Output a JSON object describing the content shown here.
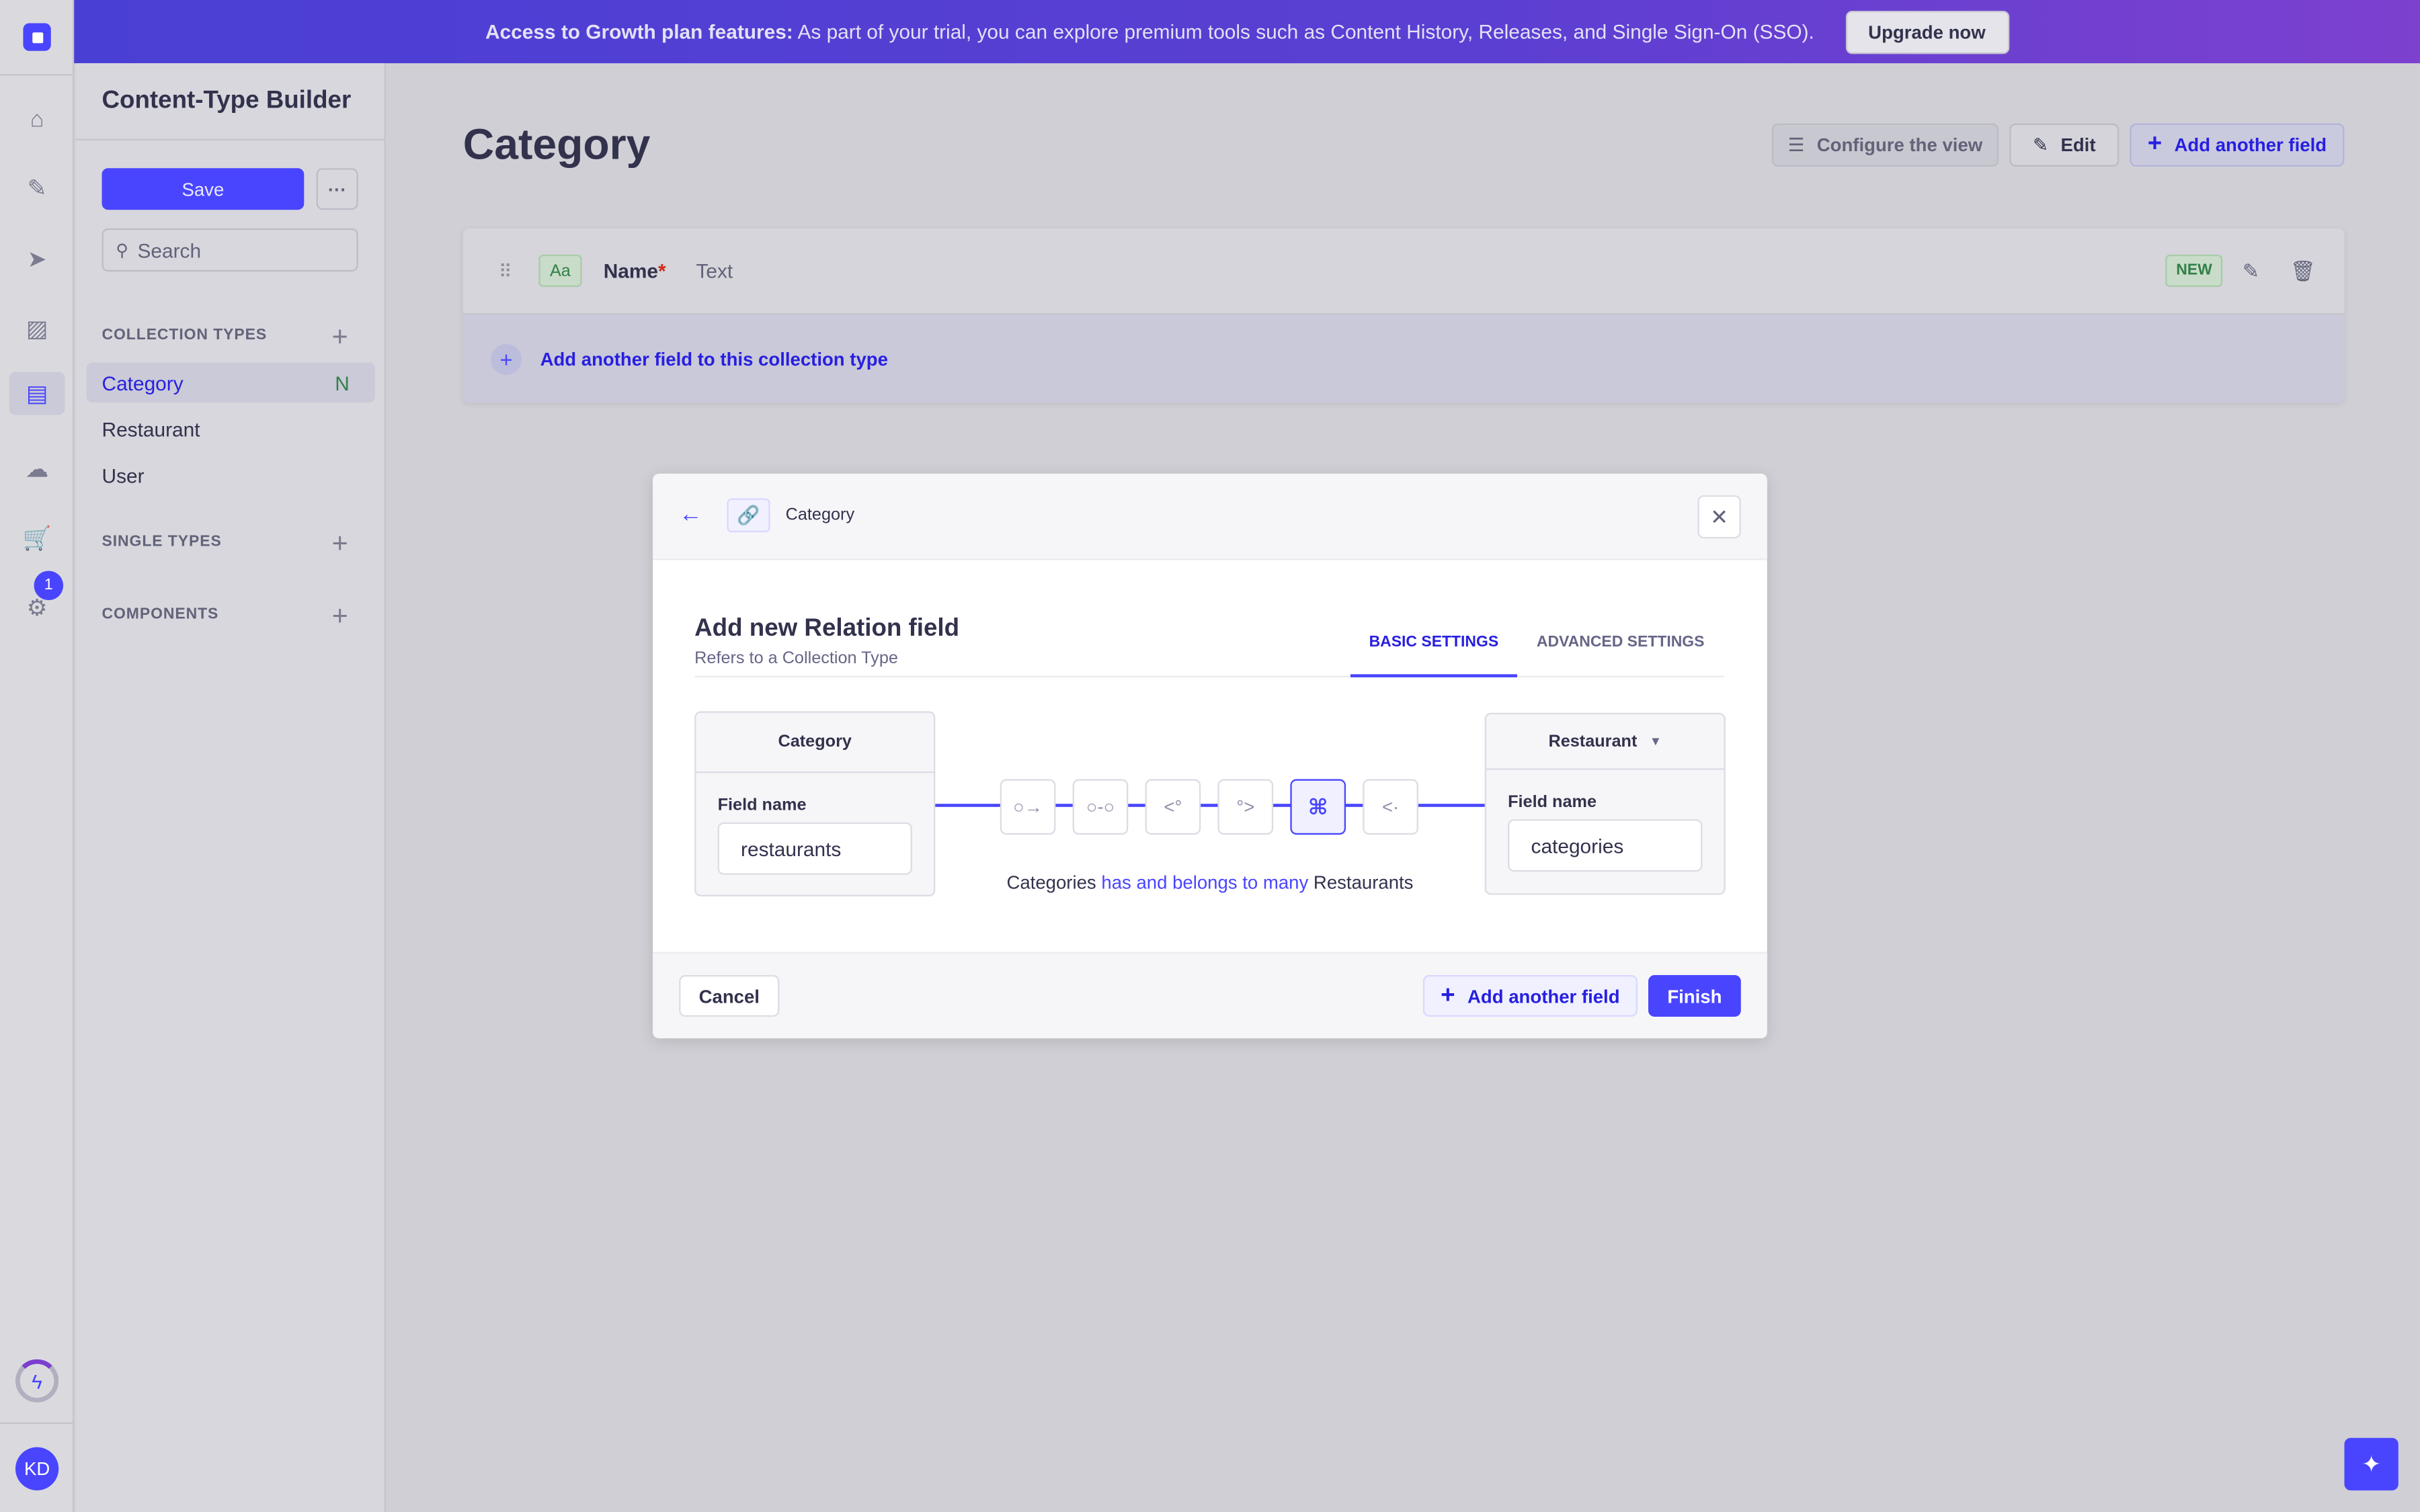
{
  "banner": {
    "bold": "Access to Growth plan features:",
    "text": "As part of your trial, you can explore premium tools such as Content History, Releases, and Single Sign-On (SSO).",
    "button": "Upgrade now"
  },
  "nav": {
    "icons": [
      "home-icon",
      "feather-icon",
      "send-icon",
      "media-icon",
      "layout-icon",
      "cloud-icon",
      "cart-icon",
      "gear-icon"
    ],
    "badge": "1",
    "avatar": "KD"
  },
  "sidebar": {
    "title": "Content-Type Builder",
    "save": "Save",
    "more": "···",
    "search_placeholder": "Search",
    "collection_types_label": "COLLECTION TYPES",
    "collection_types": [
      {
        "label": "Category",
        "badge": "N",
        "active": true
      },
      {
        "label": "Restaurant"
      },
      {
        "label": "User"
      }
    ],
    "single_types_label": "SINGLE TYPES",
    "components_label": "COMPONENTS"
  },
  "main": {
    "title": "Category",
    "configure": "Configure the view",
    "edit": "Edit",
    "add_field": "Add another field",
    "field": {
      "type_icon": "Aa",
      "name": "Name",
      "required": "*",
      "type": "Text",
      "badge": "NEW"
    },
    "add_field_row": "Add another field to this collection type"
  },
  "modal": {
    "breadcrumb": "Category",
    "title": "Add new Relation field",
    "subtitle": "Refers to a Collection Type",
    "tabs": [
      {
        "label": "BASIC SETTINGS",
        "active": true
      },
      {
        "label": "ADVANCED SETTINGS"
      }
    ],
    "left": {
      "name": "Category",
      "field_label": "Field name",
      "field_value": "restaurants"
    },
    "right": {
      "name": "Restaurant",
      "field_label": "Field name",
      "field_value": "categories"
    },
    "relation_types": [
      "one-way",
      "one-to-one",
      "one-to-many",
      "many-to-one",
      "many-to-many",
      "many-way"
    ],
    "selected_relation": "many-to-many",
    "sentence": {
      "a": "Categories",
      "rel": "has and belongs to many",
      "b": "Restaurants"
    },
    "cancel": "Cancel",
    "add_another": "Add another field",
    "finish": "Finish"
  },
  "colors": {
    "primary": "#4945ff",
    "banner": "#4a3fd4",
    "success": "#328048"
  }
}
